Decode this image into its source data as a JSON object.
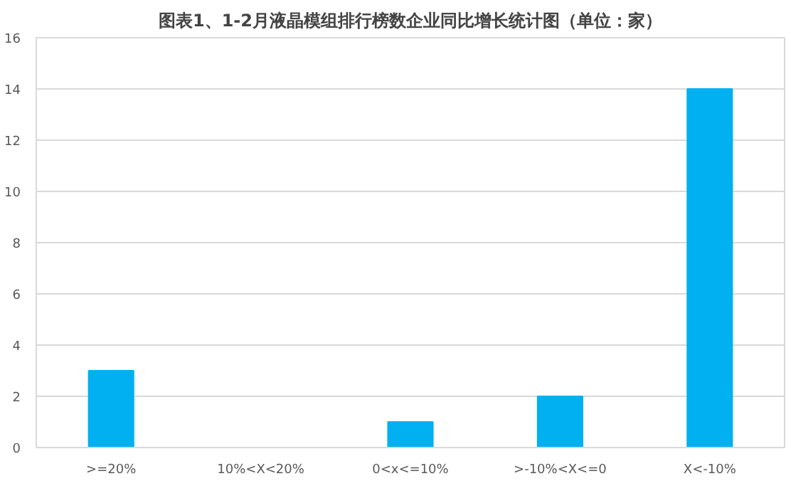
{
  "chart_data": {
    "type": "bar",
    "title": "图表1、1-2月液晶模组排行榜数企业同比增长统计图（单位：家）",
    "categories": [
      ">=20%",
      "10%<X<20%",
      "0<x<=10%",
      ">-10%<X<=0",
      "X<-10%"
    ],
    "values": [
      3,
      0,
      1,
      2,
      14
    ],
    "color": "#00b0f0",
    "ylim": [
      0,
      16
    ],
    "yticks": [
      0,
      2,
      4,
      6,
      8,
      10,
      12,
      14,
      16
    ],
    "grid": "y"
  }
}
